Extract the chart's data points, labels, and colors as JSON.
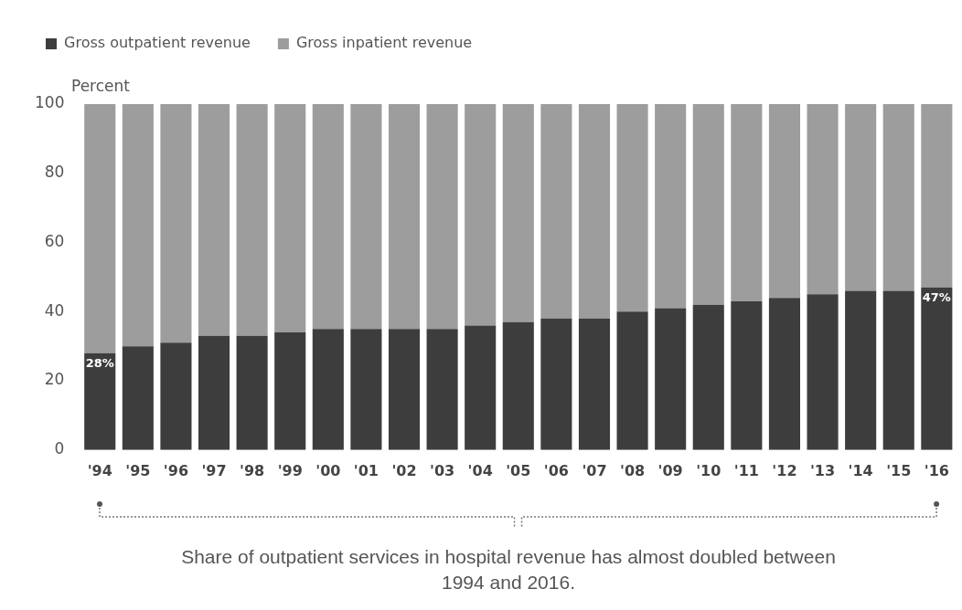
{
  "chart_data": {
    "type": "bar",
    "stacked": true,
    "ylabel": "Percent",
    "categories": [
      "'94",
      "'95",
      "'96",
      "'97",
      "'98",
      "'99",
      "'00",
      "'01",
      "'02",
      "'03",
      "'04",
      "'05",
      "'06",
      "'07",
      "'08",
      "'09",
      "'10",
      "'11",
      "'12",
      "'13",
      "'14",
      "'15",
      "'16"
    ],
    "series": [
      {
        "name": "Gross outpatient revenue",
        "color": "#3d3d3d",
        "values": [
          28,
          30,
          31,
          33,
          33,
          34,
          35,
          35,
          35,
          35,
          36,
          37,
          38,
          38,
          40,
          41,
          42,
          43,
          44,
          45,
          46,
          46,
          47
        ],
        "value_labels": [
          "28%",
          null,
          null,
          null,
          null,
          null,
          null,
          null,
          null,
          null,
          null,
          null,
          null,
          null,
          null,
          null,
          null,
          null,
          null,
          null,
          null,
          null,
          "47%"
        ]
      },
      {
        "name": "Gross inpatient revenue",
        "color": "#9d9d9d",
        "values": [
          72,
          70,
          69,
          67,
          67,
          66,
          65,
          65,
          65,
          65,
          64,
          63,
          62,
          62,
          60,
          59,
          58,
          57,
          56,
          55,
          54,
          54,
          53
        ]
      }
    ],
    "ylim": [
      0,
      100
    ],
    "yticks": [
      0,
      20,
      40,
      60,
      80,
      100
    ],
    "grid": false,
    "legend": "top left",
    "annotations": [
      "Share of outpatient services in hospital revenue has almost doubled between 1994 and 2016."
    ]
  }
}
